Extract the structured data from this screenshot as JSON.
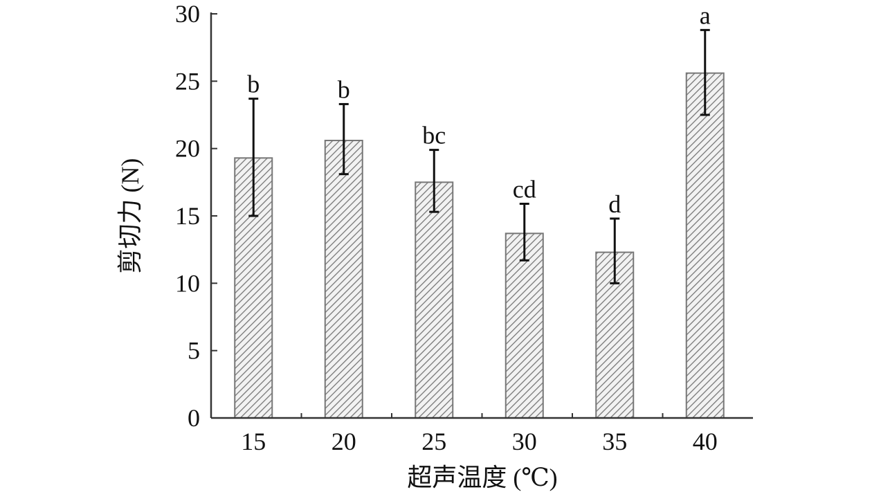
{
  "chart_data": {
    "type": "bar",
    "title": "",
    "xlabel": "超声温度 (℃)",
    "ylabel": "剪切力 (N)",
    "ylim": [
      0,
      30
    ],
    "yticks": [
      0,
      5,
      10,
      15,
      20,
      25,
      30
    ],
    "categories": [
      "15",
      "20",
      "25",
      "30",
      "35",
      "40"
    ],
    "values": [
      19.3,
      20.6,
      17.5,
      13.7,
      12.3,
      25.6
    ],
    "error_upper": [
      23.7,
      23.3,
      19.9,
      15.9,
      14.8,
      28.8
    ],
    "error_lower": [
      15.0,
      18.1,
      15.3,
      11.7,
      10.0,
      22.5
    ],
    "significance_labels": [
      "b",
      "b",
      "bc",
      "cd",
      "d",
      "a"
    ],
    "bar_fill": "hatched",
    "bar_color": "#7a7a7a",
    "grid": false,
    "legend": "none"
  }
}
